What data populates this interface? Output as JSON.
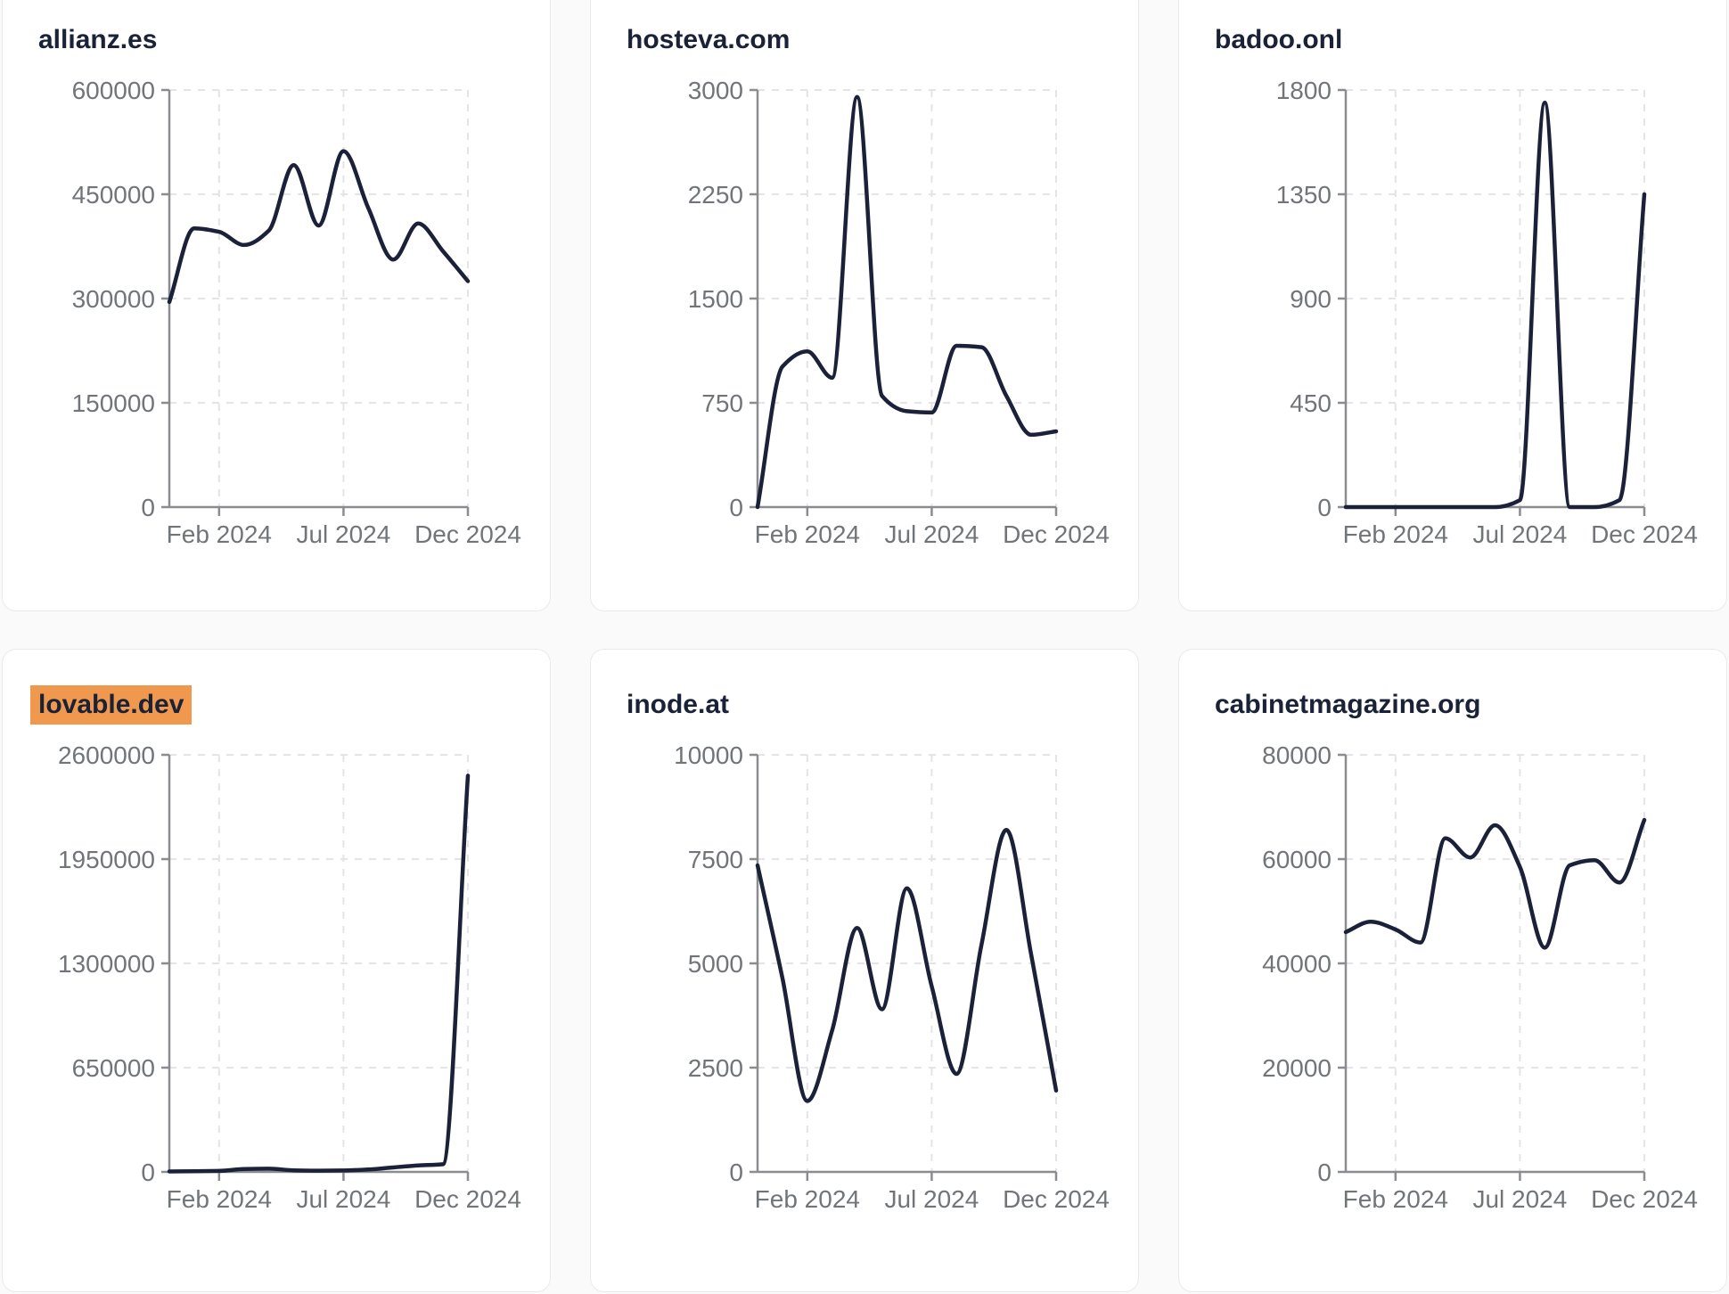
{
  "style": {
    "page_bg": "#fafafa",
    "card_bg": "#ffffff",
    "card_border": "#e8eaee",
    "line_color": "#1b2138",
    "axis_color": "#8a8c90",
    "grid_color": "#e3e4e7",
    "tick_label_color": "#717579",
    "title_color": "#1a2238",
    "highlight_color": "#f0994e"
  },
  "x_axis": {
    "months": [
      "Dec 2023",
      "Jan 2024",
      "Feb 2024",
      "Mar 2024",
      "Apr 2024",
      "May 2024",
      "Jun 2024",
      "Jul 2024",
      "Aug 2024",
      "Sep 2024",
      "Oct 2024",
      "Nov 2024",
      "Dec 2024"
    ],
    "tick_labels": [
      "Feb 2024",
      "Jul 2024",
      "Dec 2024"
    ],
    "tick_month_index": [
      2,
      7,
      12
    ]
  },
  "chart_data": [
    {
      "type": "line",
      "title": "allianz.es",
      "highlighted": false,
      "values": [
        295000,
        401000,
        396000,
        377000,
        398000,
        492000,
        405000,
        512000,
        430000,
        356000,
        408000,
        368000,
        325000
      ],
      "y_ticks": [
        0,
        150000,
        300000,
        450000,
        600000
      ],
      "ylim": [
        0,
        600000
      ],
      "x_tick_labels": [
        "Feb 2024",
        "Jul 2024",
        "Dec 2024"
      ],
      "grid": "dashed"
    },
    {
      "type": "line",
      "title": "hosteva.com",
      "highlighted": false,
      "values": [
        0,
        1010,
        1120,
        930,
        2950,
        800,
        690,
        680,
        1160,
        1150,
        800,
        520,
        545
      ],
      "y_ticks": [
        0,
        750,
        1500,
        2250,
        3000
      ],
      "ylim": [
        0,
        3000
      ],
      "x_tick_labels": [
        "Feb 2024",
        "Jul 2024",
        "Dec 2024"
      ],
      "grid": "dashed"
    },
    {
      "type": "line",
      "title": "badoo.onl",
      "highlighted": false,
      "values": [
        0,
        0,
        0,
        0,
        0,
        0,
        0,
        30,
        1745,
        0,
        0,
        30,
        1350
      ],
      "y_ticks": [
        0,
        450,
        900,
        1350,
        1800
      ],
      "ylim": [
        0,
        1800
      ],
      "x_tick_labels": [
        "Feb 2024",
        "Jul 2024",
        "Dec 2024"
      ],
      "grid": "dashed"
    },
    {
      "type": "line",
      "title": "lovable.dev",
      "highlighted": true,
      "values": [
        3000,
        4000,
        6000,
        18000,
        20000,
        10000,
        8000,
        9000,
        15000,
        28000,
        40000,
        48000,
        2470000
      ],
      "y_ticks": [
        0,
        650000,
        1300000,
        1950000,
        2600000
      ],
      "ylim": [
        0,
        2600000
      ],
      "x_tick_labels": [
        "Feb 2024",
        "Jul 2024",
        "Dec 2024"
      ],
      "grid": "dashed"
    },
    {
      "type": "line",
      "title": "inode.at",
      "highlighted": false,
      "values": [
        7350,
        4650,
        1700,
        3400,
        5850,
        3900,
        6800,
        4450,
        2350,
        5450,
        8200,
        5200,
        1950
      ],
      "y_ticks": [
        0,
        2500,
        5000,
        7500,
        10000
      ],
      "ylim": [
        0,
        10000
      ],
      "x_tick_labels": [
        "Feb 2024",
        "Jul 2024",
        "Dec 2024"
      ],
      "grid": "dashed"
    },
    {
      "type": "line",
      "title": "cabinetmagazine.org",
      "highlighted": false,
      "values": [
        46000,
        48000,
        46500,
        44000,
        64000,
        60300,
        66500,
        58500,
        43000,
        58800,
        59800,
        55500,
        67500
      ],
      "y_ticks": [
        0,
        20000,
        40000,
        60000,
        80000
      ],
      "ylim": [
        0,
        80000
      ],
      "x_tick_labels": [
        "Feb 2024",
        "Jul 2024",
        "Dec 2024"
      ],
      "grid": "dashed"
    }
  ]
}
